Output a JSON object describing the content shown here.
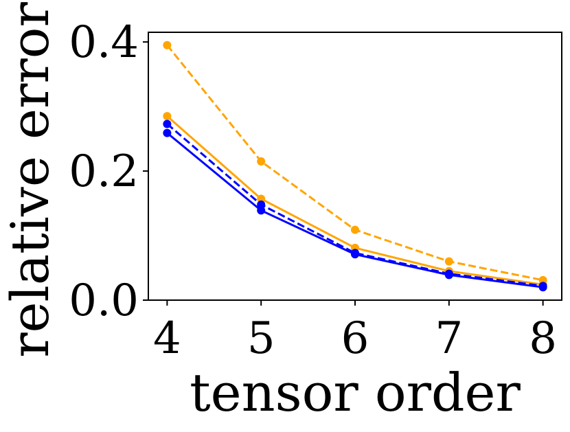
{
  "chart_data": {
    "type": "line",
    "title": "",
    "xlabel": "tensor order",
    "ylabel": "relative error",
    "x": [
      4,
      5,
      6,
      7,
      8
    ],
    "xlim": [
      3.8,
      8.2
    ],
    "ylim": [
      0.0,
      0.415
    ],
    "xticks": [
      4,
      5,
      6,
      7,
      8
    ],
    "xtick_labels": [
      "4",
      "5",
      "6",
      "7",
      "8"
    ],
    "yticks": [
      0.0,
      0.2,
      0.4
    ],
    "ytick_labels": [
      "0.0",
      "0.2",
      "0.4"
    ],
    "grid": false,
    "series": [
      {
        "color": "#ffa500",
        "linestyle": "dashed",
        "marker": "circle",
        "values": [
          0.395,
          0.215,
          0.109,
          0.06,
          0.031
        ]
      },
      {
        "color": "#ffa500",
        "linestyle": "solid",
        "marker": "circle",
        "values": [
          0.285,
          0.157,
          0.081,
          0.045,
          0.024
        ]
      },
      {
        "color": "#0000ff",
        "linestyle": "dashed",
        "marker": "circle",
        "values": [
          0.273,
          0.148,
          0.073,
          0.041,
          0.022
        ]
      },
      {
        "color": "#0000ff",
        "linestyle": "solid",
        "marker": "circle",
        "values": [
          0.259,
          0.139,
          0.071,
          0.039,
          0.02
        ]
      }
    ]
  }
}
